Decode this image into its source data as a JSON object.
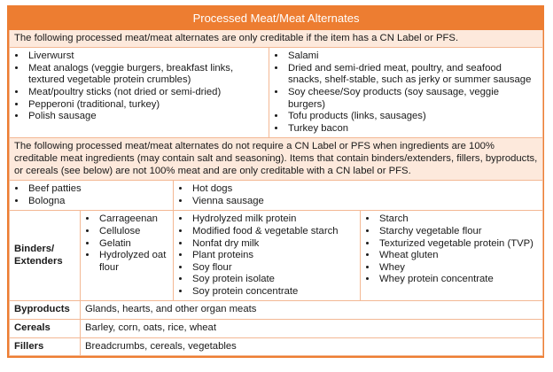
{
  "title": "Processed Meat/Meat Alternates",
  "note_pfs": "The following processed meat/meat alternates are only creditable if the item has a CN Label or PFS.",
  "list_pfs": {
    "left": [
      "Liverwurst",
      "Meat analogs (veggie burgers, breakfast links, textured vegetable protein crumbles)",
      "Meat/poultry sticks (not dried or semi-dried)",
      "Pepperoni (traditional, turkey)",
      "Polish sausage"
    ],
    "right": [
      "Salami",
      "Dried and semi-dried meat, poultry, and seafood snacks, shelf-stable, such as jerky or summer sausage",
      "Soy cheese/Soy products (soy sausage, veggie burgers)",
      "Tofu products (links, sausages)",
      "Turkey bacon"
    ]
  },
  "note_no_pfs": "The following processed meat/meat alternates do not require a CN Label or PFS when ingredients are 100% creditable meat ingredients (may contain salt and seasoning). Items that contain binders/extenders, fillers, byproducts, or cereals (see below) are not 100% meat and are only creditable with a CN label or PFS.",
  "list_no_pfs": {
    "left": [
      "Beef patties",
      "Bologna"
    ],
    "right": [
      "Hot dogs",
      "Vienna sausage"
    ]
  },
  "binders": {
    "label_lines": [
      "Binders/",
      "Extenders"
    ],
    "col1": [
      "Carrageenan",
      "Cellulose",
      "Gelatin",
      "Hydrolyzed oat flour"
    ],
    "col2": [
      "Hydrolyzed milk protein",
      "Modified food & vegetable starch",
      "Nonfat dry milk",
      "Plant proteins",
      "Soy flour",
      "Soy protein isolate",
      "Soy protein concentrate"
    ],
    "col3": [
      "Starch",
      "Starchy vegetable flour",
      "Texturized vegetable protein (TVP)",
      "Wheat gluten",
      "Whey",
      "Whey protein concentrate"
    ]
  },
  "rows": [
    {
      "label": "Byproducts",
      "text": "Glands, hearts, and other organ meats"
    },
    {
      "label": "Cereals",
      "text": "Barley, corn, oats, rice, wheat"
    },
    {
      "label": "Fillers",
      "text": "Breadcrumbs, cereals, vegetables"
    }
  ]
}
